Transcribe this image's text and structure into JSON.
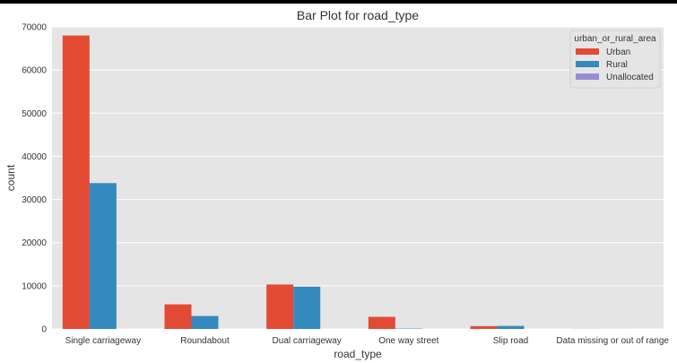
{
  "chart_data": {
    "type": "bar",
    "title": "Bar Plot for road_type",
    "xlabel": "road_type",
    "ylabel": "count",
    "categories": [
      "Single carriageway",
      "Roundabout",
      "Dual carriageway",
      "One way street",
      "Slip road",
      "Data missing or out of range"
    ],
    "series": [
      {
        "name": "Urban",
        "values": [
          68000,
          5700,
          10300,
          2800,
          650,
          20
        ]
      },
      {
        "name": "Rural",
        "values": [
          33800,
          3000,
          9800,
          80,
          700,
          10
        ]
      },
      {
        "name": "Unallocated",
        "values": [
          0,
          0,
          0,
          0,
          0,
          0
        ]
      }
    ],
    "ylim": [
      0,
      70000
    ],
    "yticks": [
      "0",
      "10000",
      "20000",
      "30000",
      "40000",
      "50000",
      "60000",
      "70000"
    ],
    "grid": true,
    "legend": {
      "title": "urban_or_rural_area",
      "placement": "top-right"
    },
    "colors": {
      "Urban": "#e24a33",
      "Rural": "#348abd",
      "Unallocated": "#988ed5",
      "plot_bg": "#e5e5e5",
      "grid": "#ffffff"
    }
  }
}
